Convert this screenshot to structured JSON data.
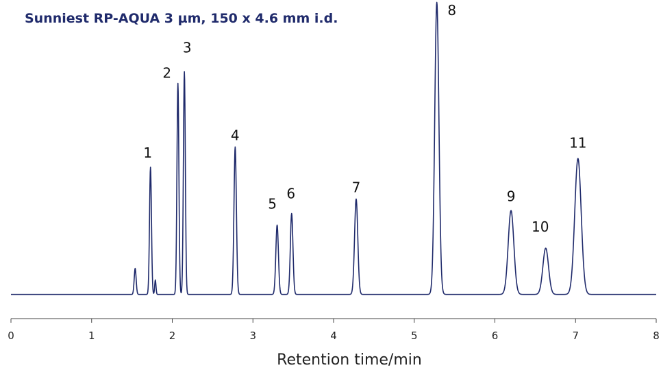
{
  "chart_data": {
    "type": "line",
    "title": "Sunniest RP-AQUA  3 µm, 150 x 4.6 mm i.d.",
    "xlabel": "Retention time/min",
    "ylabel": "",
    "xlim": [
      0,
      8
    ],
    "ylim": [
      0,
      100
    ],
    "x_ticks": [
      0,
      1,
      2,
      3,
      4,
      5,
      6,
      7,
      8
    ],
    "grid": false,
    "line_color": "#1f2a6b",
    "baseline": 1.5,
    "peaks": [
      {
        "label": "1",
        "t": 1.73,
        "height": 44,
        "width": 0.012
      },
      {
        "label": "2",
        "t": 2.07,
        "height": 73,
        "width": 0.012
      },
      {
        "label": "3",
        "t": 2.15,
        "height": 77,
        "width": 0.012
      },
      {
        "label": "4",
        "t": 2.78,
        "height": 51,
        "width": 0.015
      },
      {
        "label": "5",
        "t": 3.3,
        "height": 24,
        "width": 0.016
      },
      {
        "label": "6",
        "t": 3.48,
        "height": 28,
        "width": 0.016
      },
      {
        "label": "7",
        "t": 4.28,
        "height": 33,
        "width": 0.02
      },
      {
        "label": "8",
        "t": 5.28,
        "height": 101,
        "width": 0.026
      },
      {
        "label": "9",
        "t": 6.2,
        "height": 29,
        "width": 0.035
      },
      {
        "label": "10",
        "t": 6.63,
        "height": 16,
        "width": 0.035
      },
      {
        "label": "11",
        "t": 7.03,
        "height": 47,
        "width": 0.04
      }
    ],
    "minor_peaks": [
      {
        "t": 1.54,
        "height": 9,
        "width": 0.012
      },
      {
        "t": 1.79,
        "height": 5,
        "width": 0.008
      }
    ]
  }
}
